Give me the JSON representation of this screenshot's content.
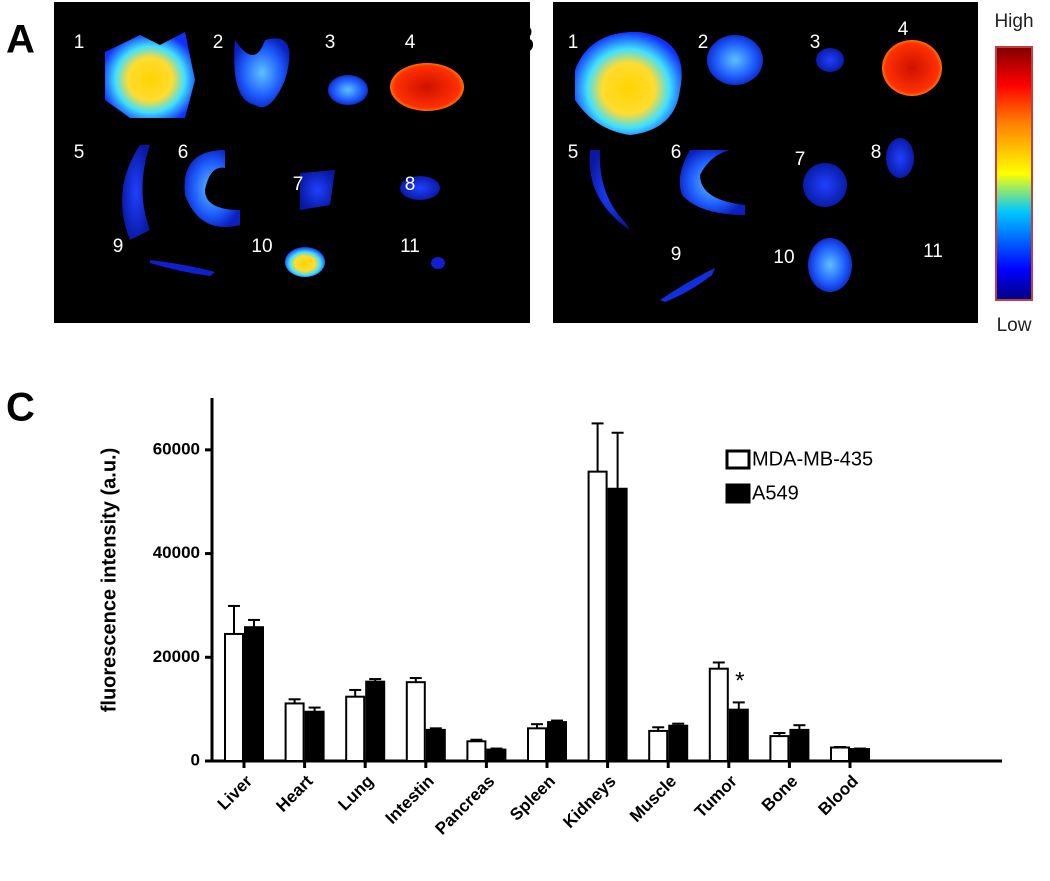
{
  "panels": [
    {
      "letter": "A",
      "organ_labels": [
        "1",
        "2",
        "3",
        "4",
        "5",
        "6",
        "7",
        "8",
        "9",
        "10",
        "11"
      ]
    },
    {
      "letter": "B",
      "organ_labels": [
        "1",
        "2",
        "3",
        "4",
        "5",
        "6",
        "7",
        "8",
        "9",
        "10",
        "11"
      ]
    },
    {
      "letter": "C"
    }
  ],
  "colorbar": {
    "high": "High",
    "low": "Low"
  },
  "chart_data": {
    "type": "bar",
    "y_label": "fluorescence intensity (a.u.)",
    "categories": [
      "Liver",
      "Heart",
      "Lung",
      "Intestin",
      "Pancreas",
      "Spleen",
      "Kidneys",
      "Muscle",
      "Tumor",
      "Bone",
      "Blood"
    ],
    "series": [
      {
        "name": "MDA-MB-435",
        "color": "#ffffff",
        "values": [
          24500,
          11100,
          12400,
          15200,
          3800,
          6300,
          55800,
          5800,
          17800,
          4800,
          2600
        ],
        "errors": [
          5400,
          800,
          1300,
          800,
          300,
          800,
          9300,
          700,
          1200,
          600,
          100
        ]
      },
      {
        "name": "A549",
        "color": "#000000",
        "values": [
          25800,
          9500,
          15300,
          6000,
          2200,
          7500,
          52500,
          6800,
          9900,
          6000,
          2300
        ],
        "errors": [
          1400,
          800,
          500,
          300,
          200,
          300,
          10800,
          400,
          1400,
          900,
          100
        ]
      }
    ],
    "annotation": "*",
    "ylim": [
      0,
      70000
    ],
    "yticks": [
      0,
      20000,
      40000,
      60000
    ],
    "legend": "upper right"
  }
}
